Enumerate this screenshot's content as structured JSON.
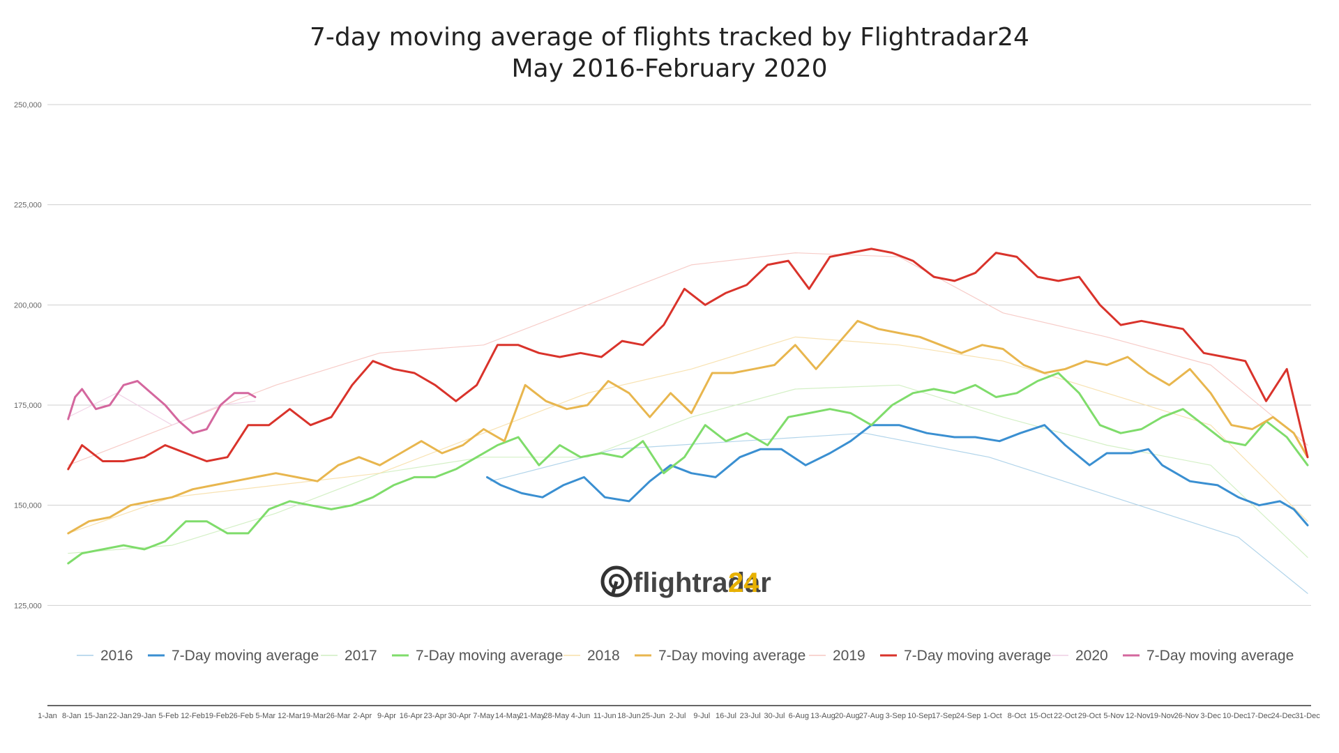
{
  "chart_data": {
    "type": "line",
    "title": "7-day moving average of flights tracked by Flightradar24",
    "subtitle": "May 2016-February 2020",
    "xlabel": "",
    "ylabel": "",
    "ylim": [
      100000,
      250000
    ],
    "xlim": [
      0,
      365
    ],
    "grid": true,
    "legend_position": "bottom",
    "y_ticks": [
      {
        "value": 125000,
        "label": "125,000"
      },
      {
        "value": 150000,
        "label": "150,000"
      },
      {
        "value": 175000,
        "label": "175,000"
      },
      {
        "value": 200000,
        "label": "200,000"
      },
      {
        "value": 225000,
        "label": "225,000"
      },
      {
        "value": 250000,
        "label": "250,000"
      }
    ],
    "x_ticks": [
      "1-Jan",
      "8-Jan",
      "15-Jan",
      "22-Jan",
      "29-Jan",
      "5-Feb",
      "12-Feb",
      "19-Feb",
      "26-Feb",
      "5-Mar",
      "12-Mar",
      "19-Mar",
      "26-Mar",
      "2-Apr",
      "9-Apr",
      "16-Apr",
      "23-Apr",
      "30-Apr",
      "7-May",
      "14-May",
      "21-May",
      "28-May",
      "4-Jun",
      "11-Jun",
      "18-Jun",
      "25-Jun",
      "2-Jul",
      "9-Jul",
      "16-Jul",
      "23-Jul",
      "30-Jul",
      "6-Aug",
      "13-Aug",
      "20-Aug",
      "27-Aug",
      "3-Sep",
      "10-Sep",
      "17-Sep",
      "24-Sep",
      "1-Oct",
      "8-Oct",
      "15-Oct",
      "22-Oct",
      "29-Oct",
      "5-Nov",
      "12-Nov",
      "19-Nov",
      "26-Nov",
      "3-Dec",
      "10-Dec",
      "17-Dec",
      "24-Dec",
      "31-Dec"
    ],
    "series": [
      {
        "name": "2016",
        "kind": "daily",
        "color": "#a9cfe8",
        "x": [
          128,
          164,
          200,
          236,
          272,
          308,
          344,
          364
        ],
        "y": [
          156000,
          164000,
          166000,
          168000,
          162000,
          152000,
          142000,
          128000
        ]
      },
      {
        "name": "7-Day moving average",
        "year": "2016",
        "kind": "avg",
        "color": "#3a8fd1",
        "x": [
          127,
          131,
          137,
          143,
          149,
          155,
          161,
          168,
          174,
          180,
          186,
          193,
          200,
          206,
          212,
          219,
          226,
          232,
          238,
          246,
          254,
          262,
          268,
          275,
          281,
          288,
          294,
          301,
          306,
          313,
          318,
          322,
          330,
          334,
          338,
          344,
          350,
          356,
          360,
          364
        ],
        "y": [
          157000,
          155000,
          153000,
          152000,
          155000,
          157000,
          152000,
          151000,
          156000,
          160000,
          158000,
          157000,
          162000,
          164000,
          164000,
          160000,
          163000,
          166000,
          170000,
          170000,
          168000,
          167000,
          167000,
          166000,
          168000,
          170000,
          165000,
          160000,
          163000,
          163000,
          164000,
          160000,
          156000,
          155500,
          155000,
          152000,
          150000,
          151000,
          149000,
          145000
        ]
      },
      {
        "name": "2017",
        "kind": "daily",
        "color": "#cfeec0",
        "x": [
          6,
          36,
          66,
          96,
          126,
          156,
          186,
          216,
          246,
          276,
          306,
          336,
          364
        ],
        "y": [
          138000,
          140000,
          148000,
          158000,
          162000,
          162000,
          172000,
          179000,
          180000,
          172000,
          165000,
          160000,
          137000
        ]
      },
      {
        "name": "7-Day moving average",
        "year": "2017",
        "kind": "avg",
        "color": "#7fdc6b",
        "x": [
          6,
          10,
          16,
          22,
          28,
          34,
          40,
          46,
          52,
          58,
          64,
          70,
          76,
          82,
          88,
          94,
          100,
          106,
          112,
          118,
          124,
          130,
          136,
          142,
          148,
          154,
          160,
          166,
          172,
          178,
          184,
          190,
          196,
          202,
          208,
          214,
          220,
          226,
          232,
          238,
          244,
          250,
          256,
          262,
          268,
          274,
          280,
          286,
          292,
          298,
          304,
          310,
          316,
          322,
          328,
          334,
          340,
          346,
          352,
          358,
          364
        ],
        "y": [
          135500,
          138000,
          139000,
          140000,
          139000,
          141000,
          146000,
          146000,
          143000,
          143000,
          149000,
          151000,
          150000,
          149000,
          150000,
          152000,
          155000,
          157000,
          157000,
          159000,
          162000,
          165000,
          167000,
          160000,
          165000,
          162000,
          163000,
          162000,
          166000,
          158000,
          162000,
          170000,
          166000,
          168000,
          165000,
          172000,
          173000,
          174000,
          173000,
          170000,
          175000,
          178000,
          179000,
          178000,
          180000,
          177000,
          178000,
          181000,
          183000,
          178000,
          170000,
          168000,
          169000,
          172000,
          174000,
          170000,
          166000,
          165000,
          171000,
          167000,
          160000
        ]
      },
      {
        "name": "2018",
        "kind": "daily",
        "color": "#f7dfa9",
        "x": [
          6,
          36,
          66,
          96,
          126,
          156,
          186,
          216,
          246,
          276,
          306,
          336,
          364
        ],
        "y": [
          143000,
          152000,
          155000,
          158000,
          168000,
          178000,
          184000,
          192000,
          190000,
          186000,
          178000,
          170000,
          146000
        ]
      },
      {
        "name": "7-Day moving average",
        "year": "2018",
        "kind": "avg",
        "color": "#e8b64e",
        "x": [
          6,
          12,
          18,
          24,
          30,
          36,
          42,
          48,
          54,
          60,
          66,
          72,
          78,
          84,
          90,
          96,
          102,
          108,
          114,
          120,
          126,
          132,
          138,
          144,
          150,
          156,
          162,
          168,
          174,
          180,
          186,
          192,
          198,
          204,
          210,
          216,
          222,
          228,
          234,
          240,
          246,
          252,
          258,
          264,
          270,
          276,
          282,
          288,
          294,
          300,
          306,
          312,
          318,
          324,
          330,
          336,
          342,
          348,
          354,
          360,
          364
        ],
        "y": [
          143000,
          146000,
          147000,
          150000,
          151000,
          152000,
          154000,
          155000,
          156000,
          157000,
          158000,
          157000,
          156000,
          160000,
          162000,
          160000,
          163000,
          166000,
          163000,
          165000,
          169000,
          166000,
          180000,
          176000,
          174000,
          175000,
          181000,
          178000,
          172000,
          178000,
          173000,
          183000,
          183000,
          184000,
          185000,
          190000,
          184000,
          190000,
          196000,
          194000,
          193000,
          192000,
          190000,
          188000,
          190000,
          189000,
          185000,
          183000,
          184000,
          186000,
          185000,
          187000,
          183000,
          180000,
          184000,
          178000,
          170000,
          169000,
          172000,
          168000,
          162000
        ]
      },
      {
        "name": "2019",
        "kind": "daily",
        "color": "#f6c7c2",
        "x": [
          6,
          36,
          66,
          96,
          126,
          156,
          186,
          216,
          246,
          276,
          306,
          336,
          364
        ],
        "y": [
          160000,
          170000,
          180000,
          188000,
          190000,
          200000,
          210000,
          213000,
          212000,
          198000,
          192000,
          185000,
          165000
        ]
      },
      {
        "name": "7-Day moving average",
        "year": "2019",
        "kind": "avg",
        "color": "#d9332b",
        "x": [
          6,
          10,
          16,
          22,
          28,
          34,
          40,
          46,
          52,
          58,
          64,
          70,
          76,
          82,
          88,
          94,
          100,
          106,
          112,
          118,
          124,
          130,
          136,
          142,
          148,
          154,
          160,
          166,
          172,
          178,
          184,
          190,
          196,
          202,
          208,
          214,
          220,
          226,
          232,
          238,
          244,
          250,
          256,
          262,
          268,
          274,
          280,
          286,
          292,
          298,
          304,
          310,
          316,
          322,
          328,
          334,
          340,
          346,
          352,
          358,
          364
        ],
        "y": [
          159000,
          165000,
          161000,
          161000,
          162000,
          165000,
          163000,
          161000,
          162000,
          170000,
          170000,
          174000,
          170000,
          172000,
          180000,
          186000,
          184000,
          183000,
          180000,
          176000,
          180000,
          190000,
          190000,
          188000,
          187000,
          188000,
          187000,
          191000,
          190000,
          195000,
          204000,
          200000,
          203000,
          205000,
          210000,
          211000,
          204000,
          212000,
          213000,
          214000,
          213000,
          211000,
          207000,
          206000,
          208000,
          213000,
          212000,
          207000,
          206000,
          207000,
          200000,
          195000,
          196000,
          195000,
          194000,
          188000,
          187000,
          186000,
          176000,
          184000,
          162000
        ]
      },
      {
        "name": "2020",
        "kind": "daily",
        "color": "#efcfe4",
        "x": [
          6,
          20,
          36,
          50,
          60
        ],
        "y": [
          172000,
          178000,
          170000,
          175000,
          176000
        ]
      },
      {
        "name": "7-Day moving average",
        "year": "2020",
        "kind": "avg",
        "color": "#d4679e",
        "x": [
          6,
          8,
          10,
          14,
          18,
          22,
          26,
          30,
          34,
          38,
          42,
          46,
          50,
          54,
          58,
          60
        ],
        "y": [
          171500,
          177000,
          179000,
          174000,
          175000,
          180000,
          181000,
          178000,
          175000,
          171000,
          168000,
          169000,
          175000,
          178000,
          178000,
          177000
        ]
      }
    ]
  },
  "legend": [
    {
      "label": "2016",
      "color": "#a9cfe8",
      "style": "thin"
    },
    {
      "label": "7-Day moving average",
      "color": "#3a8fd1",
      "style": "thick"
    },
    {
      "label": "2017",
      "color": "#cfeec0",
      "style": "thin"
    },
    {
      "label": "7-Day moving average",
      "color": "#7fdc6b",
      "style": "thick"
    },
    {
      "label": "2018",
      "color": "#f7dfa9",
      "style": "thin"
    },
    {
      "label": "7-Day moving average",
      "color": "#e8b64e",
      "style": "thick"
    },
    {
      "label": "2019",
      "color": "#f6c7c2",
      "style": "thin"
    },
    {
      "label": "7-Day moving average",
      "color": "#d9332b",
      "style": "thick"
    },
    {
      "label": "2020",
      "color": "#efcfe4",
      "style": "thin"
    },
    {
      "label": "7-Day moving average",
      "color": "#d4679e",
      "style": "thick"
    }
  ],
  "logo": {
    "wordmark": "flightradar",
    "number": "24"
  }
}
